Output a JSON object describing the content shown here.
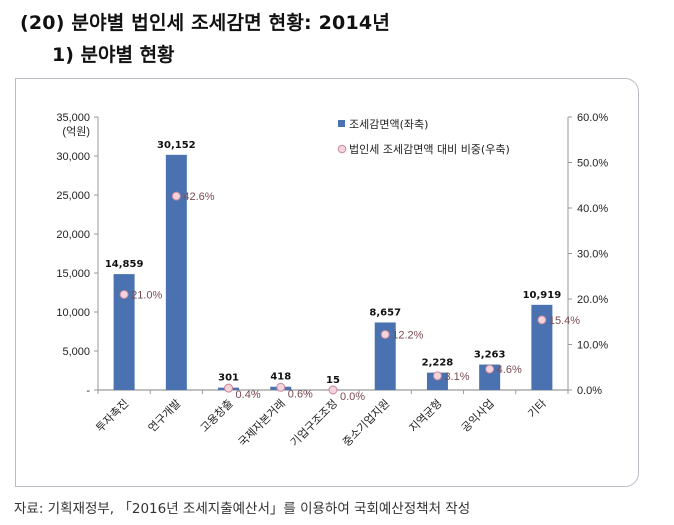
{
  "header": {
    "title": "(20) 분야별 법인세 조세감면 현황: 2014년",
    "subtitle": "1) 분야별 현황"
  },
  "source": "자료: 기획재정부, 「2016년 조세지출예산서」를 이용하여 국회예산정책처 작성",
  "chart_data": {
    "type": "bar",
    "title": "",
    "categories": [
      "투자촉진",
      "연구개발",
      "고용창출",
      "국제자본거래",
      "기업구조조정",
      "중소기업지원",
      "지역균형",
      "공익사업",
      "기타"
    ],
    "series": [
      {
        "name": "조세감면액(좌축)",
        "type": "bar",
        "axis": "left",
        "color": "#4a72b0",
        "values": [
          14859,
          30152,
          301,
          418,
          15,
          8657,
          2228,
          3263,
          10919
        ],
        "labels": [
          "14,859",
          "30,152",
          "301",
          "418",
          "15",
          "8,657",
          "2,228",
          "3,263",
          "10,919"
        ]
      },
      {
        "name": "법인세 조세감면액 대비 비중(우축)",
        "type": "scatter",
        "axis": "right",
        "marker_fill": "#f3d3dc",
        "marker_edge": "#c9879a",
        "label_color": "#7a4a52",
        "values": [
          21.0,
          42.6,
          0.4,
          0.6,
          0.0,
          12.2,
          3.1,
          4.6,
          15.4
        ],
        "labels": [
          "21.0%",
          "42.6%",
          "0.4%",
          "0.6%",
          "0.0%",
          "12.2%",
          "3.1%",
          "4.6%",
          "15.4%"
        ]
      }
    ],
    "y_left": {
      "label": "(억원)",
      "ylim": [
        0,
        35000
      ],
      "ticks": [
        0,
        5000,
        10000,
        15000,
        20000,
        25000,
        30000,
        35000
      ],
      "tick_labels": [
        "-",
        "5,000",
        "10,000",
        "15,000",
        "20,000",
        "25,000",
        "30,000",
        "35,000"
      ]
    },
    "y_right": {
      "label": "",
      "ylim": [
        0,
        60
      ],
      "ticks": [
        0,
        10,
        20,
        30,
        40,
        50,
        60
      ],
      "tick_labels": [
        "0.0%",
        "10.0%",
        "20.0%",
        "30.0%",
        "40.0%",
        "50.0%",
        "60.0%"
      ]
    },
    "xlabel": "",
    "grid": false,
    "legend": {
      "placement": "top-right",
      "entries": [
        "조세감면액(좌축)",
        "법인세 조세감면액 대비 비중(우축)"
      ]
    }
  }
}
